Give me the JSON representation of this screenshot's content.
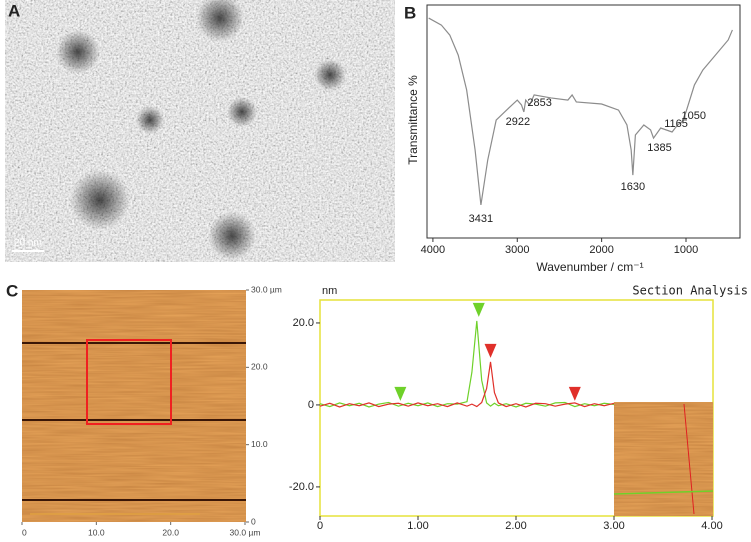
{
  "panels": {
    "a": {
      "label": "A",
      "scale_bar": "20 nm"
    },
    "b": {
      "label": "B"
    },
    "c": {
      "label": "C",
      "afm_image": {
        "xlim": [
          0,
          30
        ],
        "ylim": [
          0,
          30
        ],
        "xticks": [
          0,
          {
            "value": 10,
            "label": "10.0"
          },
          {
            "value": 20,
            "label": "20.0"
          },
          {
            "value": 30,
            "label": "30.0 µm"
          }
        ],
        "yticks": [
          0,
          {
            "value": 10,
            "label": "10.0"
          },
          {
            "value": 20,
            "label": "20.0"
          },
          {
            "value": 30,
            "label": "30.0 µm"
          }
        ]
      }
    }
  },
  "chart_data": [
    {
      "type": "line",
      "xlabel": "Wavenumber / cm⁻¹",
      "ylabel": "Transmittance %",
      "x": [
        4050,
        3900,
        3800,
        3700,
        3600,
        3500,
        3431,
        3350,
        3250,
        3100,
        3000,
        2950,
        2922,
        2900,
        2853,
        2800,
        2600,
        2400,
        2350,
        2300,
        2000,
        1800,
        1700,
        1650,
        1630,
        1600,
        1500,
        1420,
        1385,
        1300,
        1165,
        1100,
        1050,
        1000,
        900,
        800,
        700,
        500,
        450
      ],
      "values": [
        94.4,
        91.4,
        87.1,
        78.5,
        63.5,
        37.8,
        14.2,
        33.5,
        50.6,
        55.8,
        59.2,
        57.1,
        54.1,
        59.2,
        57.1,
        61.4,
        60.1,
        59.2,
        61.4,
        58.4,
        57.5,
        54.9,
        48.5,
        37.8,
        27.0,
        44.2,
        48.5,
        46.4,
        42.9,
        47.2,
        45.5,
        48.5,
        49.8,
        54.1,
        65.7,
        72.1,
        76.4,
        85.0,
        89.3
      ],
      "color": "#8c8c8c",
      "xlim": [
        4070,
        360
      ],
      "ylim": [
        0,
        100
      ],
      "xticks": [
        4000,
        3000,
        2000,
        1000
      ],
      "annotations": [
        {
          "label": "3431",
          "x": 3431
        },
        {
          "label": "2922",
          "x": 2922
        },
        {
          "label": "2853",
          "x": 2853
        },
        {
          "label": "1630",
          "x": 1630
        },
        {
          "label": "1385",
          "x": 1385
        },
        {
          "label": "1165",
          "x": 1165
        },
        {
          "label": "1050",
          "x": 1050
        }
      ]
    },
    {
      "type": "line",
      "title": "Section Analysis",
      "ylabel": "nm",
      "x": [
        0,
        0.1,
        0.2,
        0.3,
        0.4,
        0.5,
        0.6,
        0.7,
        0.8,
        0.9,
        1.0,
        1.1,
        1.2,
        1.3,
        1.4,
        1.5,
        1.55,
        1.6,
        1.65,
        1.7,
        1.74,
        1.78,
        1.82,
        1.9,
        2.0,
        2.1,
        2.2,
        2.3,
        2.4,
        2.5,
        2.6,
        2.7,
        2.8,
        2.9,
        3.0
      ],
      "series": [
        {
          "color": "#6fd12a",
          "values": [
            0.3,
            -0.4,
            0.5,
            -0.2,
            0.4,
            -0.5,
            0.2,
            0.6,
            -0.3,
            0.4,
            -0.2,
            0.5,
            -0.4,
            0.3,
            0.2,
            0.8,
            8,
            20.5,
            6,
            0.5,
            -0.3,
            0.4,
            -0.2,
            0.3,
            -0.5,
            0.4,
            0.2,
            -0.3,
            0.5,
            0.6,
            -0.4,
            0.3,
            -0.2,
            0.4,
            0.1
          ]
        },
        {
          "color": "#e0302a",
          "values": [
            -0.3,
            0.4,
            -0.5,
            0.3,
            -0.2,
            0.5,
            -0.4,
            0.2,
            0.4,
            -0.3,
            0.5,
            -0.2,
            0.3,
            -0.4,
            0.5,
            -0.3,
            0.2,
            -0.4,
            0.6,
            4,
            10.5,
            3,
            0.5,
            -0.4,
            0.3,
            -0.5,
            0.4,
            0.3,
            -0.3,
            0.2,
            0.5,
            -0.4,
            0.3,
            -0.2,
            0.4
          ]
        }
      ],
      "markers": [
        {
          "color": "#6fd12a",
          "x": 0.82,
          "y": 0
        },
        {
          "color": "#6fd12a",
          "x": 1.62,
          "y": 20.5
        },
        {
          "color": "#e0302a",
          "x": 1.74,
          "y": 10.5
        },
        {
          "color": "#e0302a",
          "x": 2.6,
          "y": 0
        }
      ],
      "xlim": [
        0,
        4.01
      ],
      "ylim": [
        -27.1,
        25.6
      ],
      "xticks": [
        0,
        {
          "value": 1,
          "label": "1.00"
        },
        {
          "value": 2,
          "label": "2.00"
        },
        {
          "value": 3,
          "label": "3.00"
        },
        {
          "value": 4,
          "label": "4.00"
        }
      ],
      "yticks": [
        {
          "value": 20,
          "label": "20.0"
        },
        0,
        {
          "value": -20,
          "label": "-20.0"
        }
      ]
    }
  ]
}
